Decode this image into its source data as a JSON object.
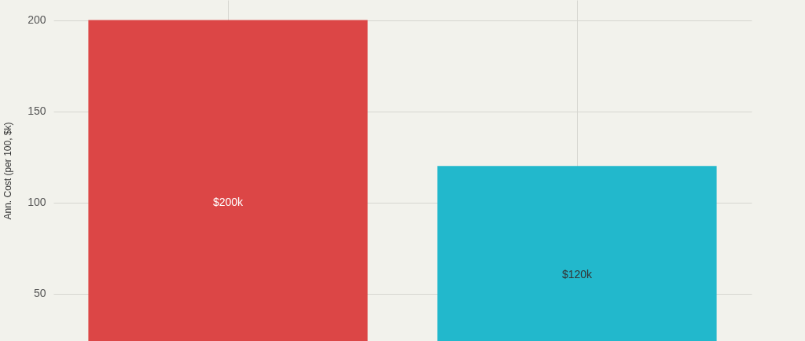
{
  "chart_data": {
    "type": "bar",
    "ylabel": "Ann. Cost (per 100, $k)",
    "categories": [
      null,
      null
    ],
    "values": [
      200,
      120
    ],
    "colors": [
      "#dc4646",
      "#22b8cc"
    ],
    "value_labels": [
      "$200k",
      "$120k"
    ],
    "ylim": [
      24,
      211
    ],
    "yticks": [
      50,
      100,
      150,
      200
    ],
    "grid": true,
    "tick_labels": "y"
  }
}
